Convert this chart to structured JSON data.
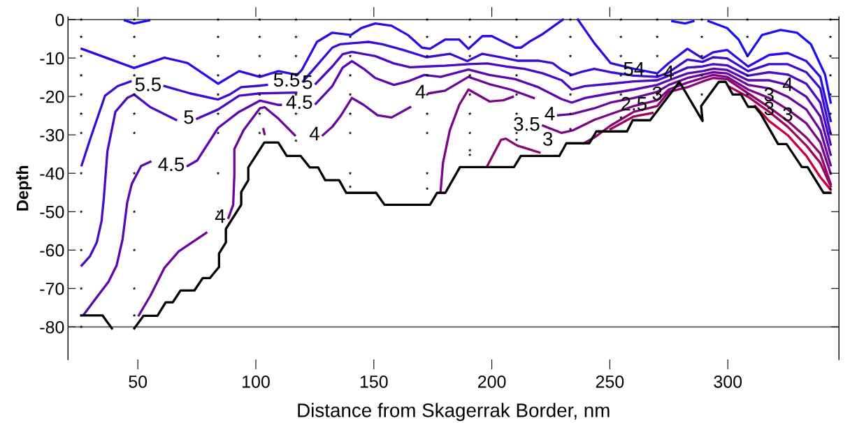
{
  "chart_data": {
    "type": "line",
    "xlabel": "Distance from Skagerrak Border, nm",
    "ylabel": "Depth",
    "xlim": [
      20.4,
      347.1
    ],
    "xticks": [
      50,
      100,
      150,
      200,
      250,
      300
    ],
    "ylim": [
      -88.5,
      0.7
    ],
    "yticks": [
      0,
      -10,
      -20,
      -30,
      -40,
      -50,
      -60,
      -70,
      -80
    ],
    "marker": "none",
    "line_style": "solid",
    "legend": false,
    "ref_lines": [
      {
        "axis": "y",
        "value": 0,
        "color": "#555555"
      },
      {
        "axis": "y",
        "value": -80,
        "color": "#555555"
      }
    ],
    "series": [
      {
        "color": "#1c10f2",
        "x": [
          44.5,
          48.4,
          54.8
        ],
        "values": [
          -0.2,
          -1,
          -0.2
        ]
      },
      {
        "color": "#1c10f2",
        "x": [
          276.5,
          281.9,
          285.4
        ],
        "values": [
          -0.4,
          -1,
          -0.4
        ]
      },
      {
        "color": "#1c10f2",
        "x": [
          291.8,
          299.7,
          304.6,
          308.4,
          314.5,
          322.4,
          329.3,
          335.2,
          341.2,
          343.6
        ],
        "values": [
          -0.4,
          -2.2,
          -5.2,
          -9.5,
          -4,
          -2.7,
          -3.4,
          -6.4,
          -14.3,
          -21.6
        ]
      },
      {
        "color": "#2a0ee6",
        "x": [
          26.2,
          48.4,
          61.3,
          71.1,
          84,
          92.9,
          101.7,
          109.6,
          117.5,
          119.5,
          125.9,
          132.4,
          140.3,
          144.7,
          150.6,
          157.5,
          164.4,
          170.4,
          173.8,
          180.2,
          186.2,
          190.1,
          196,
          200,
          204.9,
          209.9,
          212.3,
          215.8,
          221.7,
          230.1
        ],
        "values": [
          -7.6,
          -12.6,
          -9.9,
          -11.3,
          -16.7,
          -13.4,
          -14.9,
          -13.4,
          -14.4,
          -13.1,
          -5.8,
          -3.4,
          -4,
          -2.2,
          -1,
          -1.6,
          -4,
          -7.3,
          -7.6,
          -5.2,
          -5.2,
          -7.6,
          -4.3,
          -4.3,
          -5.8,
          -7.3,
          -7.3,
          -5.8,
          -3.7,
          0
        ]
      },
      {
        "color": "#2a0ee6",
        "x": [
          236.5,
          243.4,
          250.3,
          260.2,
          270.1,
          275,
          282.9,
          289.3,
          293.8,
          299.7,
          308.6,
          317.5,
          325.4,
          333.3,
          339.2,
          343.6
        ],
        "values": [
          0,
          -6.1,
          -11.3,
          -12.8,
          -14,
          -11.3,
          -7.6,
          -10.1,
          -8.5,
          -7.9,
          -12.2,
          -9.2,
          -8.7,
          -10.8,
          -14.9,
          -26.4
        ]
      },
      {
        "color": "#3b0cd6",
        "x": [
          26.2,
          29.7,
          36.1,
          41.5,
          46.9
        ],
        "values": [
          -37.9,
          -31.3,
          -19.8,
          -17.3,
          -16.1
        ]
      },
      {
        "color": "#3b0cd6",
        "x": [
          61.3,
          72.1,
          84,
          88.9,
          93.8,
          101.7,
          104.7
        ],
        "values": [
          -17.3,
          -19.2,
          -20.8,
          -19.5,
          -17.6,
          -17.2,
          -17
        ]
      },
      {
        "color": "#3b0cd6",
        "x": [
          120,
          125.9,
          132.4,
          135.8,
          147.7,
          153.6,
          162.5,
          172.3,
          182.2,
          189.6,
          196,
          203.9,
          210.8,
          219.7,
          225.7,
          229.6,
          233.9,
          237.5,
          243.4,
          250.3,
          260.2,
          270.1,
          275,
          282.9,
          289.3,
          293.8,
          299.7,
          308.6,
          317.5,
          325.4,
          333.3,
          339.2,
          343.6
        ],
        "values": [
          -16.1,
          -11.9,
          -7.3,
          -6.4,
          -5.8,
          -6.4,
          -7.9,
          -9.8,
          -8.9,
          -10.8,
          -8.9,
          -9.8,
          -10.7,
          -10.7,
          -11.3,
          -13.1,
          -14.4,
          -13.7,
          -12.8,
          -13.7,
          -14.6,
          -14.9,
          -13.7,
          -10.4,
          -11,
          -9.8,
          -10.1,
          -13.4,
          -11.6,
          -11.6,
          -13.7,
          -17.9,
          -29.8
        ]
      },
      {
        "color": "#4b0ac4",
        "x": [
          26.2,
          29.7,
          32.6,
          34.6,
          35.6,
          37.1,
          40.5,
          45.5,
          48.4,
          55.3,
          66.2
        ],
        "values": [
          -64,
          -61.6,
          -58,
          -52.5,
          -46.4,
          -34.3,
          -24,
          -20.4,
          -19.5,
          -22.8,
          -26.1
        ]
      },
      {
        "color": "#4b0ac4",
        "x": [
          75.1,
          84,
          92.9,
          101.7,
          117.1
        ],
        "values": [
          -25.8,
          -23.4,
          -19.8,
          -19.2,
          -19
        ]
      },
      {
        "color": "#4b0ac4",
        "x": [
          125.4,
          132.4,
          136.8,
          140.7,
          150.6,
          158.5,
          165.4,
          172.3,
          180.2,
          190.1,
          198,
          205.9,
          213.8,
          221.7,
          229.6,
          233.9,
          239.5,
          250.3,
          260.2,
          270.1,
          275,
          282.9,
          289.3,
          293.8,
          299.7,
          308.6,
          317.5,
          325.4,
          333.3,
          339.2,
          343.6
        ],
        "values": [
          -16.7,
          -12.2,
          -9,
          -8.4,
          -9.5,
          -11.4,
          -12.4,
          -12.2,
          -12,
          -11.6,
          -11.4,
          -12.2,
          -12.8,
          -14,
          -15.8,
          -18.2,
          -17.3,
          -16.7,
          -16.1,
          -15.8,
          -14.6,
          -12.5,
          -12.2,
          -11.6,
          -11.9,
          -14.6,
          -13.7,
          -14.3,
          -16.7,
          -21.6,
          -32.5
        ]
      },
      {
        "color": "#5c08b0",
        "x": [
          27.2,
          31.6,
          37.6,
          41,
          43.5,
          45.5,
          47.4,
          51.4,
          55.3
        ],
        "values": [
          -76.7,
          -73.1,
          -68.2,
          -64,
          -57.3,
          -47.6,
          -42.8,
          -38.1,
          -37
        ]
      },
      {
        "color": "#5c08b0",
        "x": [
          71.1,
          75.1,
          84,
          92.9,
          101.7,
          109.6,
          110.6
        ],
        "values": [
          -38.1,
          -36.7,
          -28.2,
          -24,
          -21.1,
          -22.2,
          -22.2
        ]
      },
      {
        "color": "#5c08b0",
        "x": [
          125.4,
          132.4,
          136.8,
          140.7,
          145.7,
          150.6,
          158.5,
          164.4,
          171.4,
          178.3,
          190.1,
          199,
          209.9,
          219.7,
          229.6,
          233.9,
          239.5,
          250.3,
          260.2,
          270.1,
          275,
          282.9,
          289.3,
          293.8,
          299.7,
          308.6,
          317.5,
          325.4,
          333.3,
          339.2,
          343.6
        ],
        "values": [
          -21.9,
          -17.3,
          -12.5,
          -10.8,
          -12.8,
          -15.2,
          -17,
          -16.1,
          -14.4,
          -14.9,
          -13,
          -14.4,
          -15.5,
          -17.6,
          -20.7,
          -21.6,
          -20.4,
          -19.2,
          -18.2,
          -17,
          -15.8,
          -14,
          -13.4,
          -12.8,
          -13.1,
          -15.8,
          -15.8,
          -17,
          -20.1,
          -25.2,
          -35.2
        ]
      },
      {
        "color": "#6c079c",
        "x": [
          50.4,
          55.3,
          61.3,
          67.2,
          79
        ],
        "values": [
          -77,
          -71.9,
          -64.6,
          -60.4,
          -55.5
        ]
      },
      {
        "color": "#6c079c",
        "x": [
          88.4,
          90.4,
          90.9,
          90.9,
          94.8,
          101.7,
          103.7,
          109.6,
          116.5
        ],
        "values": [
          -51.6,
          -48.2,
          -40.4,
          -33.7,
          -28.8,
          -23.1,
          -22.8,
          -25.8,
          -30.1
        ]
      },
      {
        "color": "#6c079c",
        "x": [
          128.4,
          132.4,
          135.8,
          140.7,
          145.7,
          151.6,
          157.5,
          165.4
        ],
        "values": [
          -30.1,
          -27.9,
          -25.2,
          -20.4,
          -22.2,
          -24.9,
          -25.5,
          -22.8
        ]
      },
      {
        "color": "#6c079c",
        "x": [
          173.3,
          180.2,
          190.1,
          199,
          207.9,
          217.8
        ],
        "values": [
          -19.2,
          -18.5,
          -14.9,
          -16.8,
          -18.2,
          -20.4
        ]
      },
      {
        "color": "#6c079c",
        "x": [
          228.1,
          233.9,
          243.4,
          250.3,
          260.2,
          270.1,
          275,
          282.9,
          289.3,
          293.8,
          299.7,
          308.6,
          317.5,
          325.4,
          333.3,
          339.2,
          343.6
        ],
        "values": [
          -24.9,
          -24.6,
          -23.1,
          -21.6,
          -20.4,
          -18.8,
          -17,
          -15.2,
          -14.3,
          -13.7,
          -14,
          -17,
          -17.9,
          -20.1,
          -23.4,
          -28.8,
          -37.9
        ]
      },
      {
        "color": "#7d0688",
        "x": [
          103.2,
          103.7
        ],
        "values": [
          -28.5,
          -29.8
        ]
      },
      {
        "color": "#7d0688",
        "x": [
          178.3,
          179.3,
          182.2,
          186.2,
          190.1,
          199,
          204.9,
          208.9
        ],
        "values": [
          -44.6,
          -37.3,
          -28.8,
          -22.2,
          -18.2,
          -21.3,
          -21,
          -20.1
        ]
      },
      {
        "color": "#7d0688",
        "x": [
          221.7,
          229.6,
          234.5,
          243.4,
          250.3,
          260.2,
          270.1,
          275,
          282.9,
          289.3,
          293.8,
          299.7,
          308.6,
          317.5,
          325.4,
          333.3,
          339.2,
          343.6
        ],
        "values": [
          -27.6,
          -29.5,
          -28.8,
          -26.1,
          -24.6,
          -22.5,
          -21,
          -18.2,
          -16.4,
          -15.2,
          -14.4,
          -14.9,
          -18.2,
          -20.4,
          -23.4,
          -27,
          -31.9,
          -40.1
        ]
      },
      {
        "color": "#8d0672",
        "x": [
          198,
          203.9,
          205.9,
          210.8,
          220.2
        ],
        "values": [
          -38.2,
          -31.3,
          -31,
          -32.8,
          -34.6
        ]
      },
      {
        "color": "#8d0672",
        "x": [
          239,
          243.4,
          250.3,
          260.2,
          270.1,
          275,
          282.9,
          289.3,
          293.8,
          299.7,
          308.6,
          317.5,
          325.4,
          333.3,
          339.2,
          343.6
        ],
        "values": [
          -32.2,
          -30.7,
          -27.6,
          -24,
          -22.5,
          -18.8,
          -17.6,
          -16.1,
          -15.2,
          -15.5,
          -19.2,
          -22.8,
          -26.4,
          -30.7,
          -34.9,
          -42.8
        ]
      },
      {
        "color": "#a0055c",
        "x": [
          250.3,
          260.2,
          268.1
        ],
        "values": [
          -28.5,
          -25.2,
          -24.3
        ]
      },
      {
        "color": "#a0055c",
        "x": [
          300.7,
          308.6,
          317.5,
          325.4,
          333.3,
          339.2,
          343.6
        ],
        "values": [
          -17.5,
          -20.1,
          -24,
          -27.9,
          -32.8,
          -37.3,
          -43.4
        ]
      },
      {
        "color": "#c8003c",
        "x": [
          311.6,
          317.5,
          325.4,
          333.3,
          339.2,
          343.6
        ],
        "values": [
          -22.5,
          -26.4,
          -30.1,
          -35.5,
          -41,
          -44.3
        ]
      },
      {
        "color": "#000000",
        "x": [
          26,
          35,
          39
        ],
        "values": [
          -77,
          -77,
          -80.4
        ]
      },
      {
        "color": "#000000",
        "x": [
          48.5,
          52.4,
          58.3,
          61.8,
          64.8,
          68.1,
          74,
          77.5,
          80.5,
          84.4,
          84.4,
          87.3,
          87.3,
          93.8,
          93.8,
          96.8,
          96.8,
          103.6,
          109.5,
          113.1,
          119,
          122.9,
          126.4,
          129.4,
          135.3,
          138.3,
          151,
          154.5,
          173.8,
          176.8,
          180.3,
          186.5,
          209.4,
          212.3,
          228.6,
          231.6,
          241.3,
          244.3,
          257.3,
          259.7,
          267.1,
          279.5,
          289.3,
          288.7,
          296.2,
          299.1,
          302.1,
          305.6,
          308.6,
          311.5,
          313.9,
          321.3,
          324.9,
          331.4,
          333.8,
          340.6,
          343.5
        ],
        "values": [
          -80.4,
          -77.1,
          -77.1,
          -73.6,
          -73.6,
          -70.5,
          -70.5,
          -67.3,
          -67.3,
          -64.4,
          -60.9,
          -58,
          -54.5,
          -48.2,
          -44.9,
          -41.8,
          -38.5,
          -32,
          -32,
          -35.5,
          -35.5,
          -38.5,
          -38.5,
          -41.8,
          -41.8,
          -45.1,
          -45.1,
          -48.2,
          -48.2,
          -45.1,
          -45.1,
          -38.4,
          -38.4,
          -35.5,
          -35.5,
          -32.2,
          -32.2,
          -29.1,
          -29.1,
          -26.2,
          -26.2,
          -16.2,
          -26.4,
          -22.5,
          -16.2,
          -16.2,
          -19.5,
          -19.5,
          -22.7,
          -22.7,
          -24.5,
          -32.4,
          -32.4,
          -38.4,
          -38.4,
          -45.1,
          -45.1
        ]
      },
      {
        "type": "scatter",
        "color": "#000000",
        "marker": "star",
        "x": [
          26,
          26,
          26,
          26,
          26,
          26,
          26,
          26,
          26,
          26,
          26,
          26,
          48.5,
          48.5,
          48.5,
          48.5,
          48.5,
          48.5,
          48.5,
          48.5,
          48.5,
          48.5,
          48.5,
          48.5,
          84,
          84,
          84,
          84,
          84,
          84,
          84,
          84,
          84,
          101.6,
          101.6,
          101.6,
          101.6,
          101.6,
          101.6,
          101.6,
          117,
          117,
          117,
          117,
          117,
          117,
          117,
          140,
          140,
          140,
          140,
          140,
          140,
          140,
          140,
          140,
          172.6,
          172.6,
          172.6,
          172.6,
          172.6,
          172.6,
          172.6,
          172.6,
          172.6,
          190.7,
          190.7,
          190.7,
          190.7,
          190.7,
          190.7,
          190.7,
          190.7,
          190.7,
          210.5,
          210.5,
          210.5,
          210.5,
          210.5,
          210.5,
          210.5,
          210.5,
          233.3,
          233.3,
          233.3,
          233.3,
          233.3,
          233.3,
          233.3,
          254.7,
          254.7,
          254.7,
          254.7,
          254.7,
          254.7,
          270.1,
          270.1,
          270.1,
          270.1,
          270.1,
          289,
          289,
          289,
          289,
          289,
          308.3,
          308.3,
          308.3,
          308.3,
          308.3,
          343.5,
          343.5,
          343.5,
          343.5,
          343.5,
          343.5,
          343.5,
          343.5,
          343.5
        ],
        "values": [
          0,
          -4.5,
          -9.5,
          -14.5,
          -19.5,
          -24.5,
          -29.5,
          -40,
          -50,
          -60,
          -70,
          -80,
          0,
          -4.5,
          -9.5,
          -14.5,
          -19.5,
          -24.5,
          -29.5,
          -40,
          -50,
          -60,
          -70,
          -77,
          0,
          -4.5,
          -9.5,
          -14.5,
          -19.5,
          -24.5,
          -29.5,
          -40,
          -50,
          0,
          -4.5,
          -9.5,
          -14.5,
          -19.5,
          -24.5,
          -29.5,
          0,
          -4.5,
          -9.5,
          -14.5,
          -19.5,
          -24.5,
          -31.5,
          0,
          -4.5,
          -9.5,
          -14.5,
          -19.5,
          -24.5,
          -29.5,
          -40,
          -43.5,
          0,
          -4.5,
          -9.5,
          -14.5,
          -19.5,
          -24.5,
          -29.5,
          -40,
          -44,
          0,
          -4.5,
          -9.5,
          -14.5,
          -19.5,
          -24.5,
          -29.5,
          -34,
          -35.2,
          0,
          -4.5,
          -9.5,
          -14.5,
          -19.5,
          -24.5,
          -29.5,
          -31.3,
          0,
          -4.5,
          -9.5,
          -14.5,
          -19.5,
          -24.5,
          -28.5,
          0,
          -4.5,
          -9.5,
          -14.5,
          -19.5,
          -25.5,
          0,
          -4.5,
          -9.5,
          -14.5,
          -19.5,
          0,
          -4.5,
          -9.5,
          -14.5,
          -19.5,
          0,
          -4.5,
          -9.5,
          -14.5,
          -19.5,
          0,
          -4.5,
          -9.5,
          -14.5,
          -19.5,
          -24.5,
          -29.5,
          -40,
          -44
        ]
      }
    ],
    "annotations": [
      {
        "text": "5.5",
        "x": 61.3,
        "y": -17.3
      },
      {
        "text": "5.5",
        "x": 120,
        "y": -16.1
      },
      {
        "text": "5",
        "x": 125.4,
        "y": -16.7
      },
      {
        "text": "5",
        "x": 75.1,
        "y": -25.8
      },
      {
        "text": "4.5",
        "x": 71.1,
        "y": -38.1
      },
      {
        "text": "4.5",
        "x": 125.4,
        "y": -21.9
      },
      {
        "text": "4",
        "x": 128.4,
        "y": -30.1
      },
      {
        "text": "4",
        "x": 88.4,
        "y": -51.6
      },
      {
        "text": "4",
        "x": 173.3,
        "y": -19.2
      },
      {
        "text": "3.5",
        "x": 221.7,
        "y": -27.6
      },
      {
        "text": "4",
        "x": 228.1,
        "y": -24.9
      },
      {
        "text": "3",
        "x": 220.2,
        "y": -34.6
      },
      {
        "text": "54",
        "x": 260.2,
        "y": -16.1
      },
      {
        "text": "2.5",
        "x": 260.2,
        "y": -25.2
      },
      {
        "text": "3",
        "x": 270.1,
        "y": -22.5
      },
      {
        "text": "4",
        "x": 275,
        "y": -17
      },
      {
        "text": "3",
        "x": 317.5,
        "y": -22.8
      },
      {
        "text": "4",
        "x": 325.4,
        "y": -20.1
      },
      {
        "text": "3",
        "x": 317.5,
        "y": -26.4
      },
      {
        "text": "3",
        "x": 325.4,
        "y": -27.9
      }
    ]
  }
}
